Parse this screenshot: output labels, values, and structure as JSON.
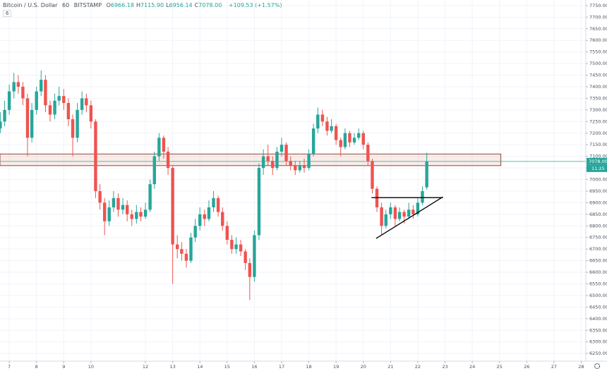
{
  "chart_data": {
    "type": "candlestick",
    "symbol": "Bitcoin / U.S. Dollar",
    "interval": "60",
    "exchange": "BITSTAMP",
    "legend": [
      {
        "label": "O",
        "value": "6966.18"
      },
      {
        "label": "H",
        "value": "7115.90"
      },
      {
        "label": "L",
        "value": "6956.14"
      },
      {
        "label": "C",
        "value": "7078.00"
      }
    ],
    "change": "+109.53 (+1.57%)",
    "indicator_count": "6",
    "last_price_label": "7078.00",
    "countdown_label": "11:25",
    "up_color": "#26a69a",
    "down_color": "#ef5350",
    "grid": true,
    "xlim": [
      6.66,
      28.17
    ],
    "ylim": [
      6217,
      7774
    ],
    "xticks": [
      7,
      8,
      9,
      10,
      12,
      13,
      14,
      15,
      16,
      17,
      18,
      19,
      20,
      21,
      22,
      23,
      24,
      25,
      26,
      27,
      28
    ],
    "yticks": [
      {
        "value": 6250,
        "label": "6250.00"
      },
      {
        "value": 6300,
        "label": "6300.00"
      },
      {
        "value": 6350,
        "label": "6350.00"
      },
      {
        "value": 6400,
        "label": "6400.00"
      },
      {
        "value": 6450,
        "label": "6450.00"
      },
      {
        "value": 6500,
        "label": "6500.00"
      },
      {
        "value": 6550,
        "label": "6550.00"
      },
      {
        "value": 6600,
        "label": "6600.00"
      },
      {
        "value": 6650,
        "label": "6650.00"
      },
      {
        "value": 6700,
        "label": "6700.00"
      },
      {
        "value": 6750,
        "label": "6750.00"
      },
      {
        "value": 6800,
        "label": "6800.00"
      },
      {
        "value": 6850,
        "label": "6850.00"
      },
      {
        "value": 6900,
        "label": "6900.00"
      },
      {
        "value": 6950,
        "label": "6950.00"
      },
      {
        "value": 7000,
        "label": "7000.00"
      },
      {
        "value": 7050,
        "label": "7050.00"
      },
      {
        "value": 7100,
        "label": "7100.00"
      },
      {
        "value": 7150,
        "label": "7150.00"
      },
      {
        "value": 7200,
        "label": "7200.00"
      },
      {
        "value": 7250,
        "label": "7250.00"
      },
      {
        "value": 7300,
        "label": "7300.00"
      },
      {
        "value": 7350,
        "label": "7350.00"
      },
      {
        "value": 7400,
        "label": "7400.00"
      },
      {
        "value": 7450,
        "label": "7450.00"
      },
      {
        "value": 7500,
        "label": "7500.00"
      },
      {
        "value": 7550,
        "label": "7550.00"
      },
      {
        "value": 7600,
        "label": "7600.00"
      },
      {
        "value": 7650,
        "label": "7650.00"
      },
      {
        "value": 7700,
        "label": "7700.00"
      },
      {
        "value": 7750,
        "label": "7750.00"
      }
    ],
    "x": [
      6.67,
      6.83,
      7,
      7.17,
      7.33,
      7.5,
      7.67,
      7.83,
      8,
      8.17,
      8.33,
      8.5,
      8.67,
      8.83,
      9,
      9.17,
      9.33,
      9.5,
      9.67,
      9.83,
      10,
      10.17,
      10.33,
      10.5,
      10.67,
      10.83,
      11,
      11.17,
      11.33,
      11.5,
      11.67,
      11.83,
      12,
      12.17,
      12.33,
      12.5,
      12.67,
      12.83,
      13,
      13.17,
      13.33,
      13.5,
      13.67,
      13.83,
      14,
      14.17,
      14.33,
      14.5,
      14.67,
      14.83,
      15,
      15.17,
      15.33,
      15.5,
      15.67,
      15.83,
      16,
      16.17,
      16.33,
      16.5,
      16.67,
      16.83,
      17,
      17.17,
      17.33,
      17.5,
      17.67,
      17.83,
      18,
      18.17,
      18.33,
      18.5,
      18.67,
      18.83,
      19,
      19.17,
      19.33,
      19.5,
      19.67,
      19.83,
      20,
      20.17,
      20.33,
      20.5,
      20.67,
      20.83,
      21,
      21.17,
      21.33,
      21.5,
      21.67,
      21.83,
      22,
      22.17,
      22.33
    ],
    "ohlc": [
      [
        7220,
        7290,
        7200,
        7250
      ],
      [
        7250,
        7340,
        7230,
        7300
      ],
      [
        7300,
        7410,
        7280,
        7380
      ],
      [
        7380,
        7460,
        7350,
        7420
      ],
      [
        7420,
        7450,
        7370,
        7400
      ],
      [
        7400,
        7420,
        7320,
        7350
      ],
      [
        7350,
        7370,
        7100,
        7180
      ],
      [
        7180,
        7330,
        7160,
        7300
      ],
      [
        7300,
        7400,
        7280,
        7380
      ],
      [
        7380,
        7470,
        7360,
        7430
      ],
      [
        7430,
        7450,
        7290,
        7320
      ],
      [
        7320,
        7340,
        7250,
        7280
      ],
      [
        7280,
        7370,
        7260,
        7340
      ],
      [
        7340,
        7400,
        7320,
        7360
      ],
      [
        7360,
        7390,
        7300,
        7330
      ],
      [
        7330,
        7350,
        7230,
        7260
      ],
      [
        7260,
        7280,
        7100,
        7180
      ],
      [
        7180,
        7330,
        7160,
        7300
      ],
      [
        7300,
        7380,
        7280,
        7350
      ],
      [
        7350,
        7370,
        7290,
        7320
      ],
      [
        7320,
        7340,
        7220,
        7250
      ],
      [
        7250,
        7260,
        6920,
        6950
      ],
      [
        6950,
        6980,
        6870,
        6900
      ],
      [
        6900,
        6920,
        6760,
        6820
      ],
      [
        6820,
        6910,
        6800,
        6880
      ],
      [
        6880,
        6950,
        6860,
        6920
      ],
      [
        6920,
        6940,
        6840,
        6870
      ],
      [
        6870,
        6920,
        6850,
        6890
      ],
      [
        6890,
        6910,
        6820,
        6850
      ],
      [
        6850,
        6870,
        6800,
        6830
      ],
      [
        6830,
        6890,
        6810,
        6860
      ],
      [
        6860,
        6880,
        6820,
        6840
      ],
      [
        6840,
        6900,
        6830,
        6870
      ],
      [
        6870,
        7000,
        6860,
        6980
      ],
      [
        6980,
        7120,
        6960,
        7100
      ],
      [
        7100,
        7200,
        7080,
        7180
      ],
      [
        7180,
        7190,
        7090,
        7120
      ],
      [
        7120,
        7140,
        7020,
        7050
      ],
      [
        7050,
        7060,
        6550,
        6720
      ],
      [
        6720,
        6760,
        6660,
        6700
      ],
      [
        6700,
        6730,
        6650,
        6680
      ],
      [
        6680,
        6700,
        6620,
        6650
      ],
      [
        6650,
        6770,
        6640,
        6750
      ],
      [
        6750,
        6830,
        6730,
        6800
      ],
      [
        6800,
        6880,
        6780,
        6850
      ],
      [
        6850,
        6870,
        6800,
        6830
      ],
      [
        6830,
        6910,
        6820,
        6880
      ],
      [
        6880,
        6950,
        6860,
        6920
      ],
      [
        6920,
        6930,
        6840,
        6860
      ],
      [
        6860,
        6880,
        6780,
        6800
      ],
      [
        6800,
        6820,
        6720,
        6740
      ],
      [
        6740,
        6760,
        6680,
        6700
      ],
      [
        6700,
        6750,
        6680,
        6720
      ],
      [
        6720,
        6740,
        6670,
        6690
      ],
      [
        6690,
        6700,
        6610,
        6640
      ],
      [
        6640,
        6660,
        6480,
        6580
      ],
      [
        6580,
        6780,
        6560,
        6760
      ],
      [
        6760,
        7070,
        6740,
        7050
      ],
      [
        7050,
        7130,
        7020,
        7100
      ],
      [
        7100,
        7150,
        7060,
        7080
      ],
      [
        7080,
        7100,
        7020,
        7050
      ],
      [
        7050,
        7140,
        7040,
        7120
      ],
      [
        7120,
        7180,
        7100,
        7150
      ],
      [
        7150,
        7160,
        7060,
        7080
      ],
      [
        7080,
        7100,
        7040,
        7060
      ],
      [
        7060,
        7080,
        7020,
        7040
      ],
      [
        7040,
        7080,
        7030,
        7060
      ],
      [
        7060,
        7090,
        7030,
        7050
      ],
      [
        7050,
        7130,
        7040,
        7110
      ],
      [
        7110,
        7240,
        7100,
        7220
      ],
      [
        7220,
        7310,
        7200,
        7280
      ],
      [
        7280,
        7300,
        7230,
        7250
      ],
      [
        7250,
        7270,
        7190,
        7210
      ],
      [
        7210,
        7260,
        7200,
        7230
      ],
      [
        7230,
        7240,
        7150,
        7170
      ],
      [
        7170,
        7180,
        7100,
        7140
      ],
      [
        7140,
        7220,
        7130,
        7200
      ],
      [
        7200,
        7210,
        7140,
        7160
      ],
      [
        7160,
        7200,
        7150,
        7180
      ],
      [
        7180,
        7220,
        7170,
        7200
      ],
      [
        7200,
        7210,
        7130,
        7150
      ],
      [
        7150,
        7160,
        7060,
        7080
      ],
      [
        7080,
        7090,
        6940,
        6960
      ],
      [
        6960,
        6970,
        6860,
        6880
      ],
      [
        6880,
        6900,
        6760,
        6800
      ],
      [
        6800,
        6870,
        6790,
        6850
      ],
      [
        6850,
        6900,
        6830,
        6880
      ],
      [
        6880,
        6890,
        6800,
        6830
      ],
      [
        6830,
        6880,
        6820,
        6860
      ],
      [
        6860,
        6870,
        6810,
        6840
      ],
      [
        6840,
        6900,
        6830,
        6870
      ],
      [
        6870,
        6890,
        6830,
        6850
      ],
      [
        6850,
        6920,
        6840,
        6900
      ],
      [
        6900,
        6970,
        6890,
        6950
      ],
      [
        6966.18,
        7115.9,
        6956.14,
        7078
      ]
    ],
    "zone": {
      "x": [
        6.66,
        25.05
      ],
      "y": [
        7060,
        7110
      ]
    },
    "trend_lines": [
      {
        "x": [
          20.3,
          22.92
        ],
        "y": [
          6922,
          6922
        ]
      },
      {
        "x": [
          20.47,
          22.92
        ],
        "y": [
          6746,
          6925
        ]
      }
    ]
  }
}
